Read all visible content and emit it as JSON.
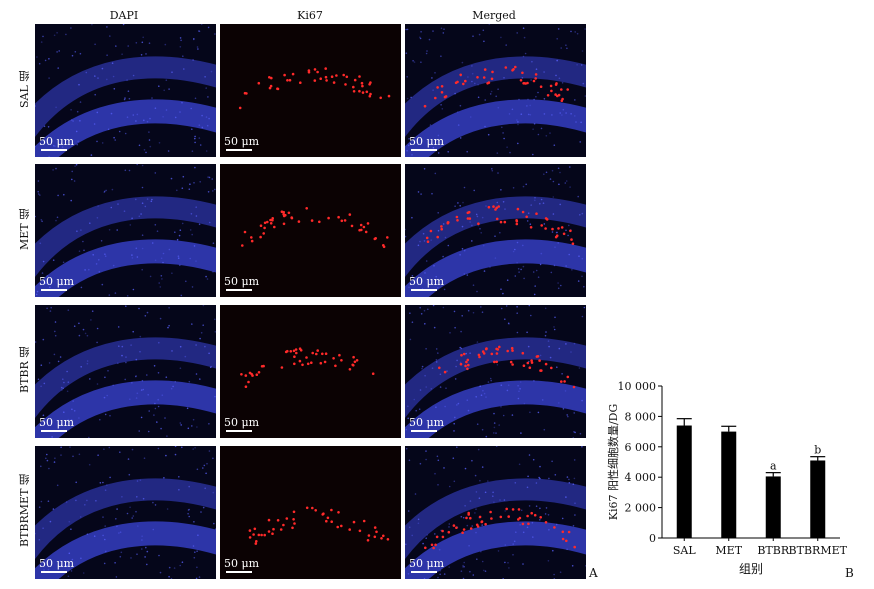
{
  "figure": {
    "columns": [
      "DAPI",
      "Ki67",
      "Merged"
    ],
    "rows": [
      "SAL 组",
      "MET 组",
      "BTBR 组",
      "BTBRMET 组"
    ],
    "scale_bar": "50 μm",
    "panel_letter_a": "A",
    "panel_letter_b": "B",
    "colors": {
      "dapi": "#3b46d8",
      "ki67": "#ff2a2a",
      "background": "#05061a"
    }
  },
  "chart_data": {
    "type": "bar",
    "categories": [
      "SAL",
      "MET",
      "BTBR",
      "BTBRMET"
    ],
    "values": [
      7400,
      7000,
      4050,
      5100
    ],
    "errors": [
      450,
      350,
      250,
      250
    ],
    "annotations": [
      "",
      "",
      "a",
      "b"
    ],
    "title": "",
    "xlabel": "组别",
    "ylabel": "Ki67 阳性细胞数量/DG",
    "ylim": [
      0,
      10000
    ],
    "yticks": [
      0,
      2000,
      4000,
      6000,
      8000,
      10000
    ],
    "ytick_labels": [
      "0",
      "2 000",
      "4 000",
      "6 000",
      "8 000",
      "10 000"
    ],
    "bar_color": "#000000",
    "grid": false
  }
}
